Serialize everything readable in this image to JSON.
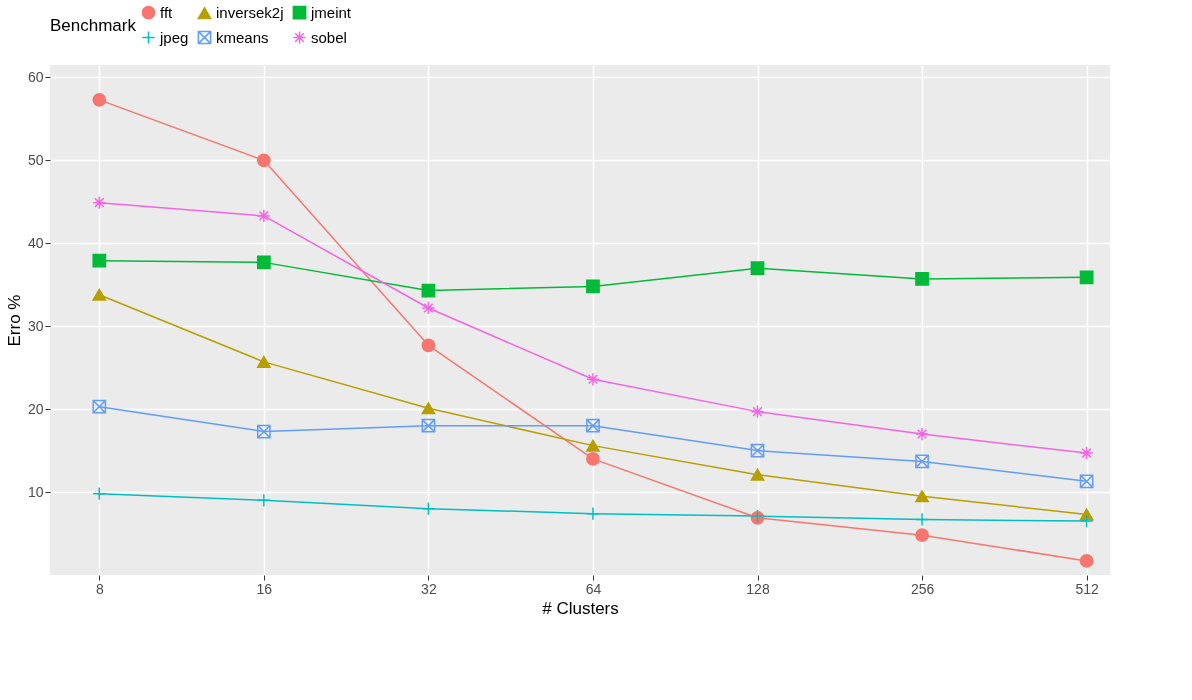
{
  "chart_data": {
    "type": "line",
    "xlabel": "# Clusters",
    "ylabel": "Erro %",
    "legend_title": "Benchmark",
    "legend": "top",
    "grid": true,
    "log": "x",
    "x": [
      8,
      16,
      32,
      64,
      128,
      256,
      512
    ],
    "xlim": [
      6.5,
      565
    ],
    "xticks": [
      8,
      16,
      32,
      64,
      128,
      256,
      512
    ],
    "ylim": [
      0,
      61.5
    ],
    "yticks": [
      10,
      20,
      30,
      40,
      50,
      60
    ],
    "series": [
      {
        "name": "fft",
        "color": "#f8766d",
        "marker": "circle",
        "values": [
          57.3,
          50.0,
          27.7,
          14.0,
          6.9,
          4.8,
          1.7
        ]
      },
      {
        "name": "inversek2j",
        "color": "#b79f00",
        "marker": "triangle",
        "values": [
          33.8,
          25.7,
          20.1,
          15.6,
          12.1,
          9.5,
          7.3
        ]
      },
      {
        "name": "jmeint",
        "color": "#00ba38",
        "marker": "square",
        "values": [
          37.9,
          37.7,
          34.3,
          34.8,
          37.0,
          35.7,
          35.9
        ]
      },
      {
        "name": "jpeg",
        "color": "#00bfc4",
        "marker": "cross",
        "values": [
          9.8,
          9.0,
          8.0,
          7.4,
          7.1,
          6.7,
          6.5
        ]
      },
      {
        "name": "kmeans",
        "color": "#619cff",
        "marker": "cross",
        "values": [
          20.3,
          17.3,
          18.0,
          18.0,
          15.0,
          13.7,
          11.3
        ]
      },
      {
        "name": "sobel",
        "color": "#f564e3",
        "marker": "cross",
        "values": [
          44.9,
          43.3,
          32.2,
          23.6,
          19.7,
          17.0,
          14.7
        ]
      }
    ]
  }
}
